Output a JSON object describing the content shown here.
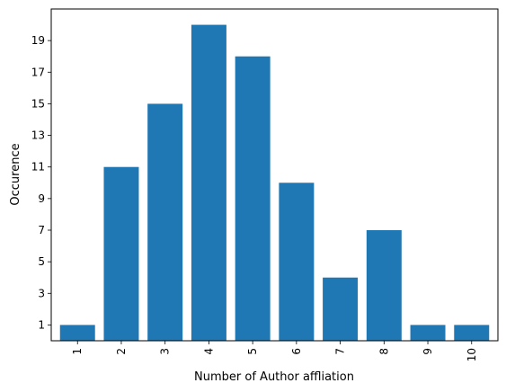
{
  "chart_data": {
    "type": "bar",
    "categories": [
      "1",
      "2",
      "3",
      "4",
      "5",
      "6",
      "7",
      "8",
      "9",
      "10"
    ],
    "values": [
      1,
      11,
      15,
      20,
      18,
      10,
      4,
      7,
      1,
      1
    ],
    "title": "",
    "xlabel": "Number of Author affliation",
    "ylabel": "Occurence",
    "ylim": [
      0,
      21
    ],
    "yticks": [
      "1",
      "3",
      "5",
      "7",
      "9",
      "11",
      "13",
      "15",
      "17",
      "19"
    ],
    "bar_color": "#1f77b4",
    "grid": false,
    "xtick_rotation": "vertical"
  }
}
